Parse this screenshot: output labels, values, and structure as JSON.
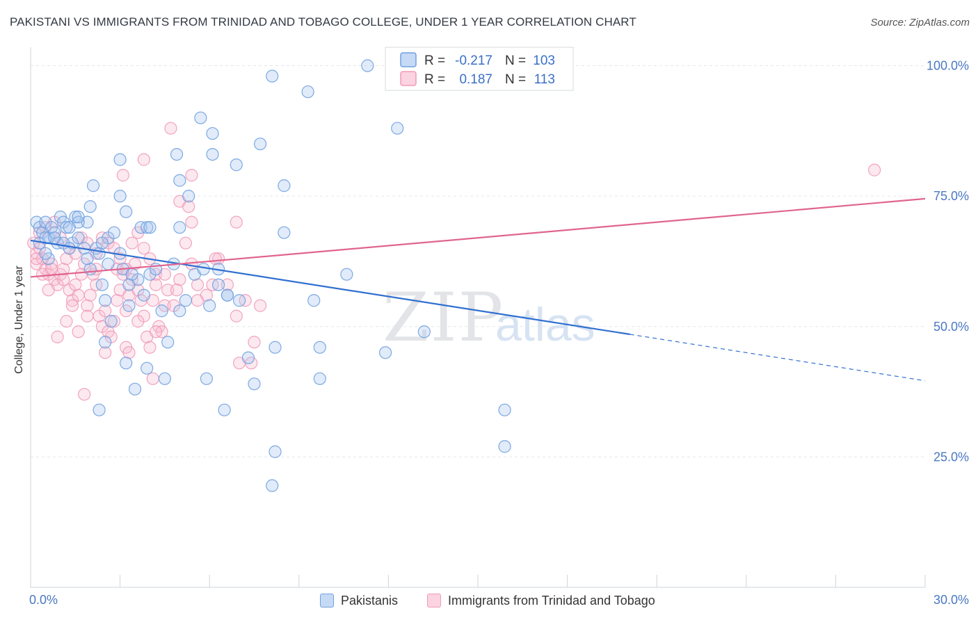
{
  "chart_data": {
    "type": "scatter",
    "title": "PAKISTANI VS IMMIGRANTS FROM TRINIDAD AND TOBAGO COLLEGE, UNDER 1 YEAR CORRELATION CHART",
    "source": "Source: ZipAtlas.com",
    "ylabel": "College, Under 1 year",
    "xlabel": "",
    "xlim": [
      0,
      30
    ],
    "ylim": [
      0,
      103
    ],
    "x_ticks": [
      {
        "value": 0,
        "label": "0.0%"
      },
      {
        "value": 30,
        "label": "30.0%"
      }
    ],
    "y_ticks": [
      {
        "value": 25,
        "label": "25.0%"
      },
      {
        "value": 50,
        "label": "50.0%"
      },
      {
        "value": 75,
        "label": "75.0%"
      },
      {
        "value": 100,
        "label": "100.0%"
      }
    ],
    "grid": true,
    "legend_position": "top-center",
    "watermark": "ZIPatlas",
    "series": [
      {
        "name": "Pakistanis",
        "color": "#6fa0e0",
        "line_color": "#2f6fd0",
        "r": "-0.217",
        "n": "103",
        "trend": {
          "x0": 0,
          "y0": 66.5,
          "x1": 20.1,
          "y1": 48.5,
          "dash_to_x": 30,
          "dash_to_y": 39.6
        },
        "points": [
          [
            0.2,
            70
          ],
          [
            0.3,
            69
          ],
          [
            0.4,
            68
          ],
          [
            0.5,
            70
          ],
          [
            0.6,
            67
          ],
          [
            0.7,
            69
          ],
          [
            0.8,
            68
          ],
          [
            1.0,
            71
          ],
          [
            1.1,
            70
          ],
          [
            1.2,
            69
          ],
          [
            0.3,
            66
          ],
          [
            0.5,
            67
          ],
          [
            0.9,
            66
          ],
          [
            1.4,
            66
          ],
          [
            1.6,
            67
          ],
          [
            1.8,
            65
          ],
          [
            2.2,
            65
          ],
          [
            2.6,
            67
          ],
          [
            2.8,
            68
          ],
          [
            1.5,
            71
          ],
          [
            1.9,
            70
          ],
          [
            1.3,
            69
          ],
          [
            2.0,
            61
          ],
          [
            2.3,
            64
          ],
          [
            3.0,
            64
          ],
          [
            3.1,
            61
          ],
          [
            3.3,
            58
          ],
          [
            3.6,
            59
          ],
          [
            3.8,
            56
          ],
          [
            4.0,
            60
          ],
          [
            4.2,
            61
          ],
          [
            4.4,
            53
          ],
          [
            4.6,
            47
          ],
          [
            5.0,
            53
          ],
          [
            5.2,
            55
          ],
          [
            5.5,
            60
          ],
          [
            5.8,
            61
          ],
          [
            6.0,
            54
          ],
          [
            6.3,
            58
          ],
          [
            6.6,
            56
          ],
          [
            2.5,
            55
          ],
          [
            2.4,
            58
          ],
          [
            2.7,
            51
          ],
          [
            2.5,
            47
          ],
          [
            3.2,
            43
          ],
          [
            3.5,
            38
          ],
          [
            3.9,
            42
          ],
          [
            4.5,
            40
          ],
          [
            5.9,
            40
          ],
          [
            6.5,
            34
          ],
          [
            2.3,
            34
          ],
          [
            6.6,
            56
          ],
          [
            6.3,
            61
          ],
          [
            7.0,
            55
          ],
          [
            7.3,
            44
          ],
          [
            7.5,
            39
          ],
          [
            8.2,
            46
          ],
          [
            8.5,
            68
          ],
          [
            9.5,
            55
          ],
          [
            9.7,
            46
          ],
          [
            9.7,
            40
          ],
          [
            10.6,
            60
          ],
          [
            11.9,
            45
          ],
          [
            13.2,
            49
          ],
          [
            15.9,
            34
          ],
          [
            15.9,
            27
          ],
          [
            8.2,
            26
          ],
          [
            8.1,
            19.5
          ],
          [
            8.1,
            98
          ],
          [
            9.3,
            95
          ],
          [
            11.3,
            100
          ],
          [
            12.3,
            88
          ],
          [
            5.7,
            90
          ],
          [
            6.1,
            87
          ],
          [
            6.1,
            83
          ],
          [
            4.9,
            83
          ],
          [
            7.7,
            85
          ],
          [
            6.9,
            81
          ],
          [
            8.5,
            77
          ],
          [
            5.0,
            78
          ],
          [
            5.3,
            75
          ],
          [
            3.0,
            82
          ],
          [
            3.0,
            75
          ],
          [
            3.2,
            72
          ],
          [
            3.7,
            69
          ],
          [
            3.9,
            69
          ],
          [
            4.0,
            69
          ],
          [
            5.0,
            69
          ],
          [
            2.1,
            77
          ],
          [
            1.1,
            66
          ],
          [
            1.6,
            70
          ],
          [
            1.6,
            71
          ],
          [
            2.0,
            73
          ],
          [
            2.6,
            62
          ],
          [
            3.4,
            60
          ],
          [
            1.9,
            63
          ],
          [
            0.6,
            63
          ],
          [
            0.5,
            64
          ],
          [
            0.8,
            67
          ],
          [
            1.3,
            65
          ],
          [
            2.4,
            66
          ],
          [
            4.8,
            62
          ],
          [
            3.3,
            54
          ]
        ]
      },
      {
        "name": "Immigrants from Trinidad and Tobago",
        "color": "#f19ab8",
        "line_color": "#e0648f",
        "r": "0.187",
        "n": "113",
        "trend": {
          "x0": 0,
          "y0": 59.5,
          "x1": 30,
          "y1": 74.5
        },
        "points": [
          [
            0.1,
            66
          ],
          [
            0.2,
            64
          ],
          [
            0.2,
            62
          ],
          [
            0.3,
            65
          ],
          [
            0.4,
            63
          ],
          [
            0.5,
            61
          ],
          [
            0.6,
            60
          ],
          [
            0.7,
            62
          ],
          [
            0.8,
            59
          ],
          [
            0.9,
            58
          ],
          [
            1.0,
            60
          ],
          [
            1.1,
            61
          ],
          [
            1.2,
            63
          ],
          [
            1.3,
            57
          ],
          [
            1.4,
            55
          ],
          [
            1.5,
            58
          ],
          [
            1.6,
            56
          ],
          [
            1.7,
            60
          ],
          [
            1.8,
            62
          ],
          [
            1.9,
            54
          ],
          [
            2.0,
            56
          ],
          [
            2.1,
            60
          ],
          [
            2.2,
            58
          ],
          [
            2.3,
            52
          ],
          [
            2.4,
            50
          ],
          [
            2.5,
            53
          ],
          [
            2.6,
            49
          ],
          [
            2.7,
            48
          ],
          [
            2.8,
            51
          ],
          [
            2.9,
            55
          ],
          [
            3.0,
            57
          ],
          [
            3.1,
            60
          ],
          [
            3.2,
            53
          ],
          [
            3.3,
            56
          ],
          [
            3.4,
            59
          ],
          [
            3.5,
            62
          ],
          [
            3.6,
            57
          ],
          [
            3.7,
            55
          ],
          [
            3.8,
            52
          ],
          [
            3.9,
            48
          ],
          [
            4.0,
            46
          ],
          [
            4.1,
            55
          ],
          [
            4.2,
            58
          ],
          [
            4.3,
            50
          ],
          [
            4.4,
            49
          ],
          [
            4.5,
            54
          ],
          [
            4.6,
            57
          ],
          [
            4.8,
            54
          ],
          [
            5.0,
            59
          ],
          [
            5.2,
            66
          ],
          [
            5.4,
            62
          ],
          [
            5.6,
            58
          ],
          [
            5.9,
            56
          ],
          [
            6.1,
            58
          ],
          [
            6.3,
            63
          ],
          [
            6.6,
            58
          ],
          [
            6.9,
            52
          ],
          [
            7.2,
            55
          ],
          [
            7.5,
            47
          ],
          [
            7.7,
            54
          ],
          [
            0.3,
            68
          ],
          [
            0.5,
            69
          ],
          [
            0.8,
            70
          ],
          [
            1.0,
            67
          ],
          [
            1.3,
            65
          ],
          [
            1.5,
            64
          ],
          [
            1.7,
            67
          ],
          [
            1.9,
            66
          ],
          [
            2.2,
            64
          ],
          [
            2.4,
            67
          ],
          [
            2.6,
            66
          ],
          [
            2.8,
            65
          ],
          [
            3.0,
            63
          ],
          [
            3.2,
            61
          ],
          [
            3.4,
            66
          ],
          [
            3.6,
            68
          ],
          [
            3.8,
            65
          ],
          [
            4.0,
            63
          ],
          [
            4.2,
            60
          ],
          [
            4.5,
            60
          ],
          [
            4.7,
            88
          ],
          [
            5.0,
            74
          ],
          [
            5.3,
            73
          ],
          [
            5.4,
            79
          ],
          [
            3.8,
            82
          ],
          [
            3.1,
            79
          ],
          [
            6.9,
            70
          ],
          [
            5.4,
            70
          ],
          [
            4.2,
            49
          ],
          [
            7.4,
            43
          ],
          [
            7.0,
            43
          ],
          [
            4.1,
            40
          ],
          [
            1.8,
            37
          ],
          [
            3.2,
            46
          ],
          [
            3.3,
            45
          ],
          [
            2.5,
            45
          ],
          [
            0.9,
            48
          ],
          [
            1.2,
            51
          ],
          [
            1.4,
            54
          ],
          [
            1.6,
            49
          ],
          [
            1.9,
            52
          ],
          [
            2.2,
            61
          ],
          [
            2.9,
            61
          ],
          [
            3.6,
            51
          ],
          [
            4.9,
            57
          ],
          [
            5.6,
            55
          ],
          [
            6.2,
            63
          ],
          [
            0.4,
            60
          ],
          [
            0.6,
            57
          ],
          [
            28.3,
            80
          ],
          [
            0.2,
            63
          ],
          [
            0.7,
            61
          ],
          [
            1.1,
            59
          ]
        ]
      }
    ]
  },
  "legend": {
    "r_label": "R =",
    "n_label": "N ="
  }
}
